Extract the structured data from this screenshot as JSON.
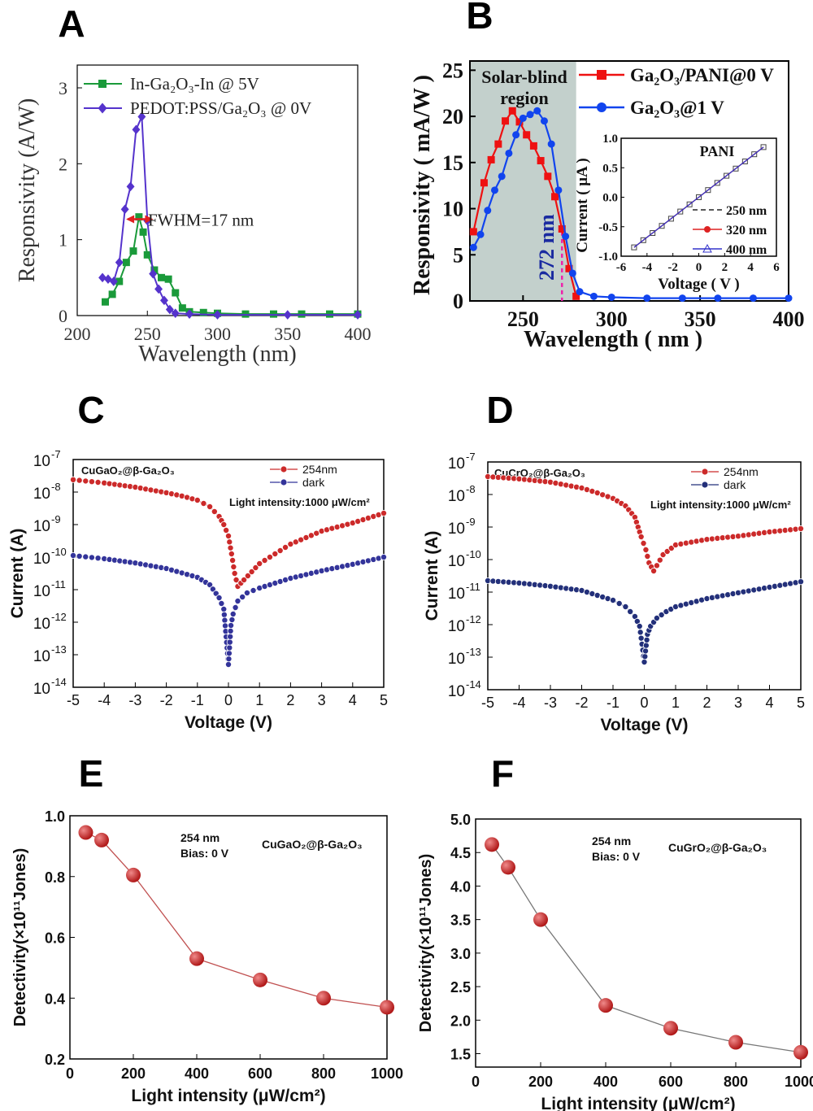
{
  "panel_labels": [
    "A",
    "B",
    "C",
    "D",
    "E",
    "F"
  ],
  "chart_data": [
    {
      "id": "A",
      "type": "line",
      "xlabel": "Wavelength (nm)",
      "ylabel": "Responsivity (A/W)",
      "xlim": [
        200,
        400
      ],
      "ylim": [
        0,
        3.3
      ],
      "xticks": [
        200,
        250,
        300,
        350,
        400
      ],
      "yticks": [
        0,
        1,
        2,
        3
      ],
      "legend_position": "top-left",
      "series": [
        {
          "name": "In-Ga₂O₃-In @ 5V",
          "color": "#1a9a3a",
          "marker": "square",
          "x": [
            220,
            225,
            230,
            235,
            240,
            244,
            247,
            250,
            255,
            260,
            265,
            270,
            275,
            280,
            290,
            300,
            320,
            340,
            360,
            380,
            400
          ],
          "y": [
            0.18,
            0.28,
            0.45,
            0.7,
            0.85,
            1.3,
            1.1,
            0.8,
            0.6,
            0.5,
            0.48,
            0.3,
            0.1,
            0.05,
            0.04,
            0.03,
            0.02,
            0.02,
            0.02,
            0.02,
            0.02
          ]
        },
        {
          "name": "PEDOT:PSS/Ga₂O₃ @ 0V",
          "color": "#5533cc",
          "marker": "diamond",
          "x": [
            218,
            222,
            226,
            230,
            234,
            238,
            242,
            246,
            250,
            254,
            258,
            262,
            266,
            270,
            280,
            300,
            350,
            400
          ],
          "y": [
            0.5,
            0.48,
            0.45,
            0.7,
            1.4,
            1.7,
            2.45,
            2.62,
            1.25,
            0.55,
            0.35,
            0.2,
            0.08,
            0.03,
            0.02,
            0.01,
            0.01,
            0.01
          ]
        }
      ],
      "annotations": [
        "FWHM=17 nm"
      ]
    },
    {
      "id": "B",
      "type": "line",
      "xlabel": "Wavelength ( nm )",
      "ylabel": "Responsivity ( mA/W )",
      "xlim": [
        220,
        400
      ],
      "ylim": [
        0,
        26
      ],
      "xticks": [
        250,
        300,
        350,
        400
      ],
      "yticks": [
        0,
        5,
        10,
        15,
        20,
        25
      ],
      "legend_position": "top-right",
      "shaded_region": {
        "label": "Solar-blind\nregion",
        "x": [
          220,
          280
        ]
      },
      "marker_line": {
        "x": 272,
        "label": "272 nm"
      },
      "series": [
        {
          "name": "Ga₂O₃/PANI@0 V",
          "color": "#ee1111",
          "marker": "square",
          "x": [
            222,
            228,
            232,
            236,
            240,
            244,
            248,
            252,
            256,
            260,
            264,
            268,
            272,
            276,
            280
          ],
          "y": [
            7.5,
            12.8,
            15.3,
            17.0,
            19.5,
            20.6,
            19.4,
            18.0,
            16.8,
            15.2,
            13.5,
            11.3,
            7.8,
            3.5,
            0.5
          ]
        },
        {
          "name": "Ga₂O₃@1 V",
          "color": "#1144ee",
          "marker": "circle",
          "x": [
            222,
            226,
            230,
            234,
            238,
            242,
            246,
            250,
            254,
            258,
            262,
            266,
            270,
            274,
            278,
            282,
            290,
            300,
            320,
            340,
            360,
            380,
            400
          ],
          "y": [
            5.8,
            7.2,
            9.8,
            12.0,
            13.5,
            16.0,
            18.0,
            19.8,
            20.2,
            20.6,
            19.5,
            17.0,
            12.0,
            7.0,
            3.0,
            1.0,
            0.5,
            0.4,
            0.3,
            0.3,
            0.3,
            0.3,
            0.3
          ]
        }
      ],
      "inset": {
        "title": "PANI",
        "xlabel": "Voltage ( V )",
        "ylabel": "Current ( μA )",
        "xlim": [
          -6,
          6
        ],
        "ylim": [
          -1.0,
          1.0
        ],
        "xticks": [
          -6,
          -4,
          -2,
          0,
          2,
          4,
          6
        ],
        "yticks": [
          -1.0,
          -0.5,
          0.0,
          0.5,
          1.0
        ],
        "series": [
          {
            "name": "250 nm",
            "color": "#222222",
            "x": [
              -5,
              5
            ],
            "y": [
              -0.85,
              0.85
            ]
          },
          {
            "name": "320 nm",
            "color": "#dd2222",
            "x": [
              -5,
              5
            ],
            "y": [
              -0.85,
              0.85
            ]
          },
          {
            "name": "400 nm",
            "color": "#3333cc",
            "x": [
              -5,
              5
            ],
            "y": [
              -0.85,
              0.85
            ]
          }
        ]
      }
    },
    {
      "id": "C",
      "type": "scatter",
      "title": "CuGaO₂@β-Ga₂O₃",
      "annotation": "Light intensity:1000 μW/cm²",
      "xlabel": "Voltage (V)",
      "ylabel": "Current (A)",
      "xlim": [
        -5,
        5
      ],
      "ylim_log10": [
        -14,
        -7
      ],
      "xticks": [
        -5,
        -4,
        -3,
        -2,
        -1,
        0,
        1,
        2,
        3,
        4,
        5
      ],
      "yticks_log10": [
        -14,
        -13,
        -12,
        -11,
        -10,
        -9,
        -8,
        -7
      ],
      "legend_position": "top-right",
      "series": [
        {
          "name": "254nm",
          "color": "#cc2a2a",
          "x": [
            -5,
            -4,
            -3,
            -2,
            -1.5,
            -1,
            -0.6,
            -0.3,
            -0.15,
            0,
            0.1,
            0.2,
            0.3,
            0.5,
            1,
            2,
            3,
            4,
            5
          ],
          "log10_y": [
            -7.62,
            -7.72,
            -7.85,
            -8.02,
            -8.12,
            -8.25,
            -8.45,
            -8.75,
            -9.0,
            -9.35,
            -9.9,
            -10.5,
            -10.9,
            -10.7,
            -10.2,
            -9.6,
            -9.2,
            -8.95,
            -8.65
          ]
        },
        {
          "name": "dark",
          "color": "#33349a",
          "x": [
            -5,
            -4,
            -3,
            -2,
            -1,
            -0.6,
            -0.3,
            -0.15,
            0,
            0.08,
            0.15,
            0.3,
            0.6,
            1,
            2,
            3,
            4,
            5
          ],
          "log10_y": [
            -9.95,
            -10.05,
            -10.18,
            -10.35,
            -10.62,
            -10.85,
            -11.25,
            -11.6,
            -13.3,
            -12.1,
            -11.75,
            -11.35,
            -11.1,
            -10.95,
            -10.65,
            -10.42,
            -10.22,
            -10.0
          ]
        }
      ]
    },
    {
      "id": "D",
      "type": "scatter",
      "title": "CuCrO₂@β-Ga₂O₃",
      "annotation": "Light intensity:1000 μW/cm²",
      "xlabel": "Voltage (V)",
      "ylabel": "Current (A)",
      "xlim": [
        -5,
        5
      ],
      "ylim_log10": [
        -14,
        -7
      ],
      "xticks": [
        -5,
        -4,
        -3,
        -2,
        -1,
        0,
        1,
        2,
        3,
        4,
        5
      ],
      "yticks_log10": [
        -14,
        -13,
        -12,
        -11,
        -10,
        -9,
        -8,
        -7
      ],
      "legend_position": "top-right",
      "series": [
        {
          "name": "254nm",
          "color": "#cc2a2a",
          "x": [
            -5,
            -4,
            -3,
            -2,
            -1.5,
            -1,
            -0.6,
            -0.3,
            -0.1,
            0.05,
            0.15,
            0.3,
            0.6,
            1,
            2,
            3,
            4,
            5
          ],
          "log10_y": [
            -7.45,
            -7.52,
            -7.62,
            -7.8,
            -7.95,
            -8.12,
            -8.35,
            -8.7,
            -9.3,
            -9.7,
            -10.1,
            -10.35,
            -9.85,
            -9.55,
            -9.38,
            -9.28,
            -9.15,
            -9.05
          ]
        },
        {
          "name": "dark",
          "color": "#23307a",
          "x": [
            -5,
            -4,
            -3,
            -2,
            -1,
            -0.6,
            -0.3,
            -0.15,
            0,
            0.1,
            0.2,
            0.4,
            0.7,
            1,
            2,
            3,
            4,
            5
          ],
          "log10_y": [
            -10.65,
            -10.72,
            -10.82,
            -10.95,
            -11.25,
            -11.45,
            -11.75,
            -12.05,
            -13.15,
            -12.3,
            -12.05,
            -11.8,
            -11.6,
            -11.45,
            -11.2,
            -11.02,
            -10.85,
            -10.68
          ]
        }
      ]
    },
    {
      "id": "E",
      "type": "line",
      "title": "CuGaO₂@β-Ga₂O₃",
      "annotation": "254 nm\nBias: 0 V",
      "xlabel": "Light intensity (μW/cm²)",
      "ylabel": "Detectivity(×10¹¹Jones)",
      "xlim": [
        0,
        1000
      ],
      "ylim": [
        0.2,
        1.0
      ],
      "xticks": [
        0,
        200,
        400,
        600,
        800,
        1000
      ],
      "yticks": [
        0.2,
        0.4,
        0.6,
        0.8,
        1.0
      ],
      "line_color": "#c05050",
      "marker_color": "#b01818",
      "x": [
        50,
        100,
        200,
        400,
        600,
        800,
        1000
      ],
      "y": [
        0.945,
        0.92,
        0.805,
        0.53,
        0.46,
        0.4,
        0.37
      ]
    },
    {
      "id": "F",
      "type": "line",
      "title": "CuGrO₂@β-Ga₂O₃",
      "annotation": "254 nm\nBias: 0 V",
      "xlabel": "Light intensity (μW/cm²)",
      "ylabel": "Detectivity(×10¹¹Jones)",
      "xlim": [
        0,
        1000
      ],
      "ylim": [
        1.3,
        5.0
      ],
      "xticks": [
        0,
        200,
        400,
        600,
        800,
        1000
      ],
      "yticks": [
        1.5,
        2.0,
        2.5,
        3.0,
        3.5,
        4.0,
        4.5,
        5.0
      ],
      "line_color": "#777777",
      "marker_color": "#b01818",
      "x": [
        50,
        100,
        200,
        400,
        600,
        800,
        1000
      ],
      "y": [
        4.62,
        4.28,
        3.5,
        2.22,
        1.88,
        1.67,
        1.52
      ]
    }
  ]
}
